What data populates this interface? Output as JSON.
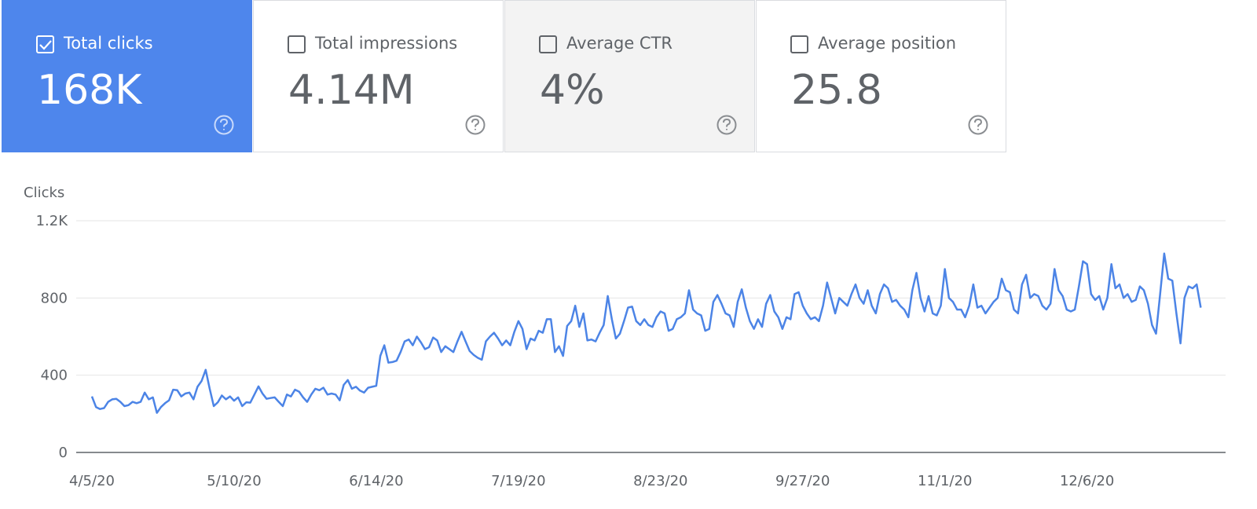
{
  "cards": [
    {
      "label": "Total clicks",
      "value": "168K",
      "checked": true
    },
    {
      "label": "Total impressions",
      "value": "4.14M",
      "checked": false
    },
    {
      "label": "Average CTR",
      "value": "4%",
      "checked": false
    },
    {
      "label": "Average position",
      "value": "25.8",
      "checked": false
    }
  ],
  "chart_data": {
    "type": "line",
    "y_label": "Clicks",
    "categories": [
      "4/5/20",
      null,
      null,
      null,
      null,
      null,
      null,
      null,
      null,
      null,
      null,
      null,
      null,
      null,
      null,
      null,
      null,
      null,
      null,
      null,
      null,
      null,
      null,
      null,
      null,
      null,
      null,
      null,
      null,
      null,
      null,
      null,
      null,
      null,
      null,
      "5/10/20",
      null,
      null,
      null,
      null,
      null,
      null,
      null,
      null,
      null,
      null,
      null,
      null,
      null,
      null,
      null,
      null,
      null,
      null,
      null,
      null,
      null,
      null,
      null,
      null,
      null,
      null,
      null,
      null,
      null,
      null,
      null,
      null,
      null,
      null,
      "6/14/20",
      null,
      null,
      null,
      null,
      null,
      null,
      null,
      null,
      null,
      null,
      null,
      null,
      null,
      null,
      null,
      null,
      null,
      null,
      null,
      null,
      null,
      null,
      null,
      null,
      null,
      null,
      null,
      null,
      null,
      null,
      null,
      null,
      null,
      null,
      "7/19/20",
      null,
      null,
      null,
      null,
      null,
      null,
      null,
      null,
      null,
      null,
      null,
      null,
      null,
      null,
      null,
      null,
      null,
      null,
      null,
      null,
      null,
      null,
      null,
      null,
      null,
      null,
      null,
      null,
      null,
      null,
      null,
      null,
      null,
      null,
      "8/23/20",
      null,
      null,
      null,
      null,
      null,
      null,
      null,
      null,
      null,
      null,
      null,
      null,
      null,
      null,
      null,
      null,
      null,
      null,
      null,
      null,
      null,
      null,
      null,
      null,
      null,
      null,
      null,
      null,
      null,
      null,
      null,
      null,
      null,
      null,
      "9/27/20",
      null,
      null,
      null,
      null,
      null,
      null,
      null,
      null,
      null,
      null,
      null,
      null,
      null,
      null,
      null,
      null,
      null,
      null,
      null,
      null,
      null,
      null,
      null,
      null,
      null,
      null,
      null,
      null,
      null,
      null,
      null,
      null,
      null,
      null,
      "11/1/20",
      null,
      null,
      null,
      null,
      null,
      null,
      null,
      null,
      null,
      null,
      null,
      null,
      null,
      null,
      null,
      null,
      null,
      null,
      null,
      null,
      null,
      null,
      null,
      null,
      null,
      null,
      null,
      null,
      null,
      null,
      null,
      null,
      null,
      null,
      "12/6/20",
      null,
      null,
      null,
      null,
      null,
      null,
      null,
      null,
      null,
      null,
      null,
      null,
      null,
      null,
      null,
      null,
      null,
      null,
      null,
      null,
      null,
      null,
      null,
      null,
      null,
      null,
      null,
      null
    ],
    "series": [
      {
        "name": "Clicks",
        "color": "#4c84e6",
        "values": [
          290,
          235,
          225,
          230,
          262,
          275,
          278,
          262,
          240,
          245,
          262,
          255,
          262,
          310,
          275,
          285,
          205,
          235,
          255,
          270,
          325,
          322,
          290,
          305,
          310,
          275,
          340,
          370,
          428,
          330,
          240,
          260,
          295,
          275,
          290,
          268,
          285,
          240,
          260,
          258,
          300,
          342,
          305,
          278,
          282,
          285,
          262,
          240,
          300,
          290,
          325,
          315,
          285,
          262,
          300,
          330,
          322,
          335,
          300,
          305,
          300,
          270,
          350,
          375,
          330,
          340,
          320,
          310,
          335,
          340,
          345,
          500,
          555,
          465,
          468,
          475,
          520,
          575,
          585,
          555,
          600,
          570,
          535,
          545,
          595,
          580,
          520,
          550,
          535,
          520,
          575,
          625,
          575,
          525,
          505,
          490,
          480,
          575,
          600,
          620,
          590,
          555,
          580,
          555,
          625,
          680,
          640,
          535,
          590,
          580,
          630,
          620,
          690,
          690,
          520,
          550,
          500,
          655,
          680,
          760,
          650,
          720,
          580,
          585,
          575,
          620,
          660,
          810,
          690,
          590,
          615,
          680,
          750,
          755,
          680,
          660,
          690,
          660,
          650,
          700,
          730,
          720,
          630,
          640,
          690,
          700,
          720,
          840,
          740,
          720,
          710,
          630,
          640,
          780,
          815,
          770,
          720,
          710,
          650,
          780,
          845,
          750,
          680,
          640,
          690,
          650,
          770,
          815,
          730,
          700,
          640,
          700,
          690,
          820,
          830,
          760,
          720,
          690,
          700,
          680,
          760,
          880,
          800,
          720,
          800,
          780,
          760,
          820,
          870,
          800,
          770,
          840,
          760,
          720,
          820,
          870,
          850,
          780,
          790,
          760,
          740,
          700,
          840,
          930,
          800,
          730,
          810,
          720,
          710,
          760,
          950,
          800,
          780,
          740,
          740,
          700,
          760,
          870,
          750,
          760,
          720,
          750,
          780,
          800,
          900,
          840,
          830,
          740,
          720,
          870,
          920,
          800,
          820,
          810,
          760,
          740,
          770,
          950,
          840,
          810,
          740,
          730,
          740,
          860,
          990,
          975,
          820,
          790,
          810,
          740,
          800,
          975,
          850,
          870,
          800,
          820,
          780,
          790,
          860,
          840,
          770,
          660,
          615,
          820,
          1030,
          900,
          890,
          720,
          565,
          800,
          860,
          850,
          870,
          750
        ]
      }
    ],
    "ylim": [
      0,
      1200
    ],
    "yticks": [
      0,
      400,
      800,
      {
        "value": 1200,
        "label": "1.2K"
      }
    ],
    "grid": true
  }
}
